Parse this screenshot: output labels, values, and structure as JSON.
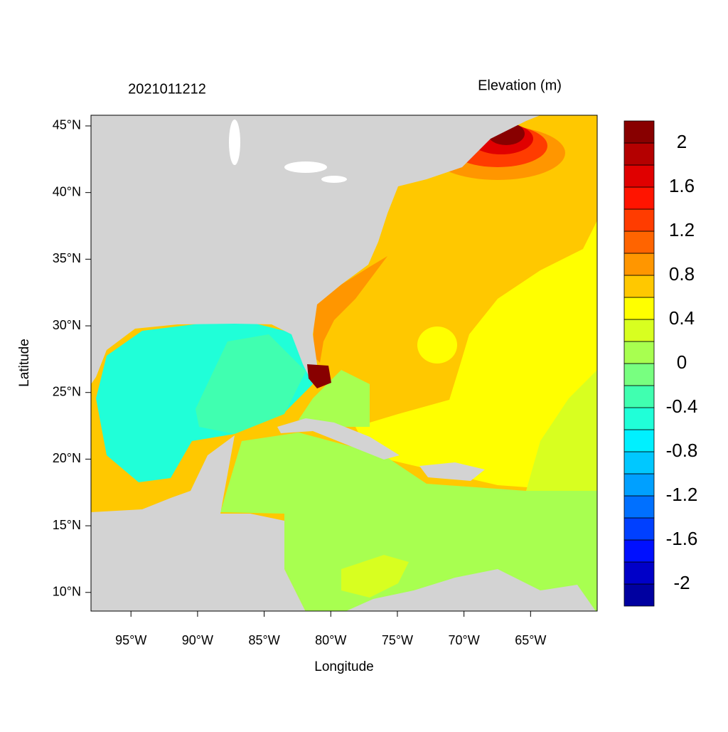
{
  "chart_data": {
    "type": "filled-contour-map",
    "title": "2021011212",
    "subtitle": "Elevation (m)",
    "x_label": "Longitude",
    "y_label": "Latitude",
    "xlim": [
      -98,
      -60
    ],
    "ylim": [
      8.6,
      45.8
    ],
    "xticks": [
      {
        "value": -95,
        "label": "95°W"
      },
      {
        "value": -90,
        "label": "90°W"
      },
      {
        "value": -85,
        "label": "85°W"
      },
      {
        "value": -80,
        "label": "80°W"
      },
      {
        "value": -75,
        "label": "75°W"
      },
      {
        "value": -70,
        "label": "70°W"
      },
      {
        "value": -65,
        "label": "65°W"
      }
    ],
    "yticks": [
      {
        "value": 10,
        "label": "10°N"
      },
      {
        "value": 15,
        "label": "15°N"
      },
      {
        "value": 20,
        "label": "20°N"
      },
      {
        "value": 25,
        "label": "25°N"
      },
      {
        "value": 30,
        "label": "30°N"
      },
      {
        "value": 35,
        "label": "35°N"
      },
      {
        "value": 40,
        "label": "40°N"
      },
      {
        "value": 45,
        "label": "45°N"
      }
    ],
    "colorbar": {
      "ticks": [
        -2,
        -1.6,
        -1.2,
        -0.8,
        -0.4,
        0,
        0.4,
        0.8,
        1.2,
        1.6,
        2
      ],
      "colors": [
        "#0000a0",
        "#0000c8",
        "#0010ff",
        "#0040ff",
        "#0070ff",
        "#00a0ff",
        "#00c8ff",
        "#00f0ff",
        "#20ffd8",
        "#40ffb0",
        "#78ff80",
        "#a8ff50",
        "#d8ff20",
        "#ffff00",
        "#ffc800",
        "#ff9600",
        "#ff6400",
        "#ff3c00",
        "#ff1400",
        "#e00000",
        "#b40000",
        "#880000"
      ]
    }
  }
}
